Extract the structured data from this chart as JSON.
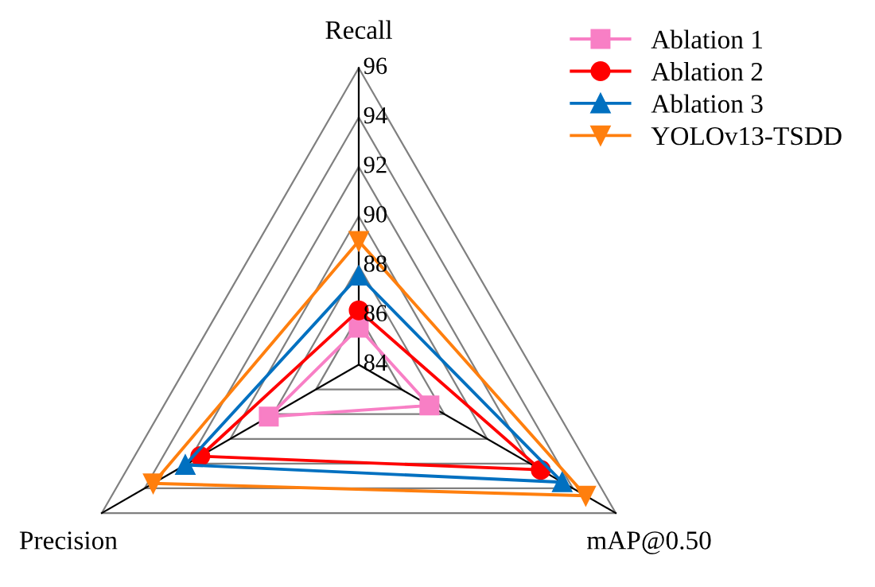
{
  "chart_data": {
    "type": "radar",
    "categories": [
      "Recall",
      "mAP@0.50",
      "Precision"
    ],
    "ylim": [
      84,
      96
    ],
    "yticks": [
      84,
      86,
      88,
      90,
      92,
      94,
      96
    ],
    "legend": "top right",
    "series": [
      {
        "name": "Ablation 1",
        "color": "#f87fc5",
        "marker": "square",
        "values": [
          85.5,
          87.3,
          88.2
        ]
      },
      {
        "name": "Ablation 2",
        "color": "#ff0000",
        "marker": "circle",
        "values": [
          86.2,
          92.5,
          91.4
        ]
      },
      {
        "name": "Ablation 3",
        "color": "#0070c0",
        "marker": "triangle",
        "values": [
          87.6,
          93.5,
          92.1
        ]
      },
      {
        "name": "YOLOv13-TSDD",
        "color": "#ff7f0e",
        "marker": "triangle_down",
        "values": [
          89.0,
          94.6,
          93.6
        ]
      }
    ]
  }
}
